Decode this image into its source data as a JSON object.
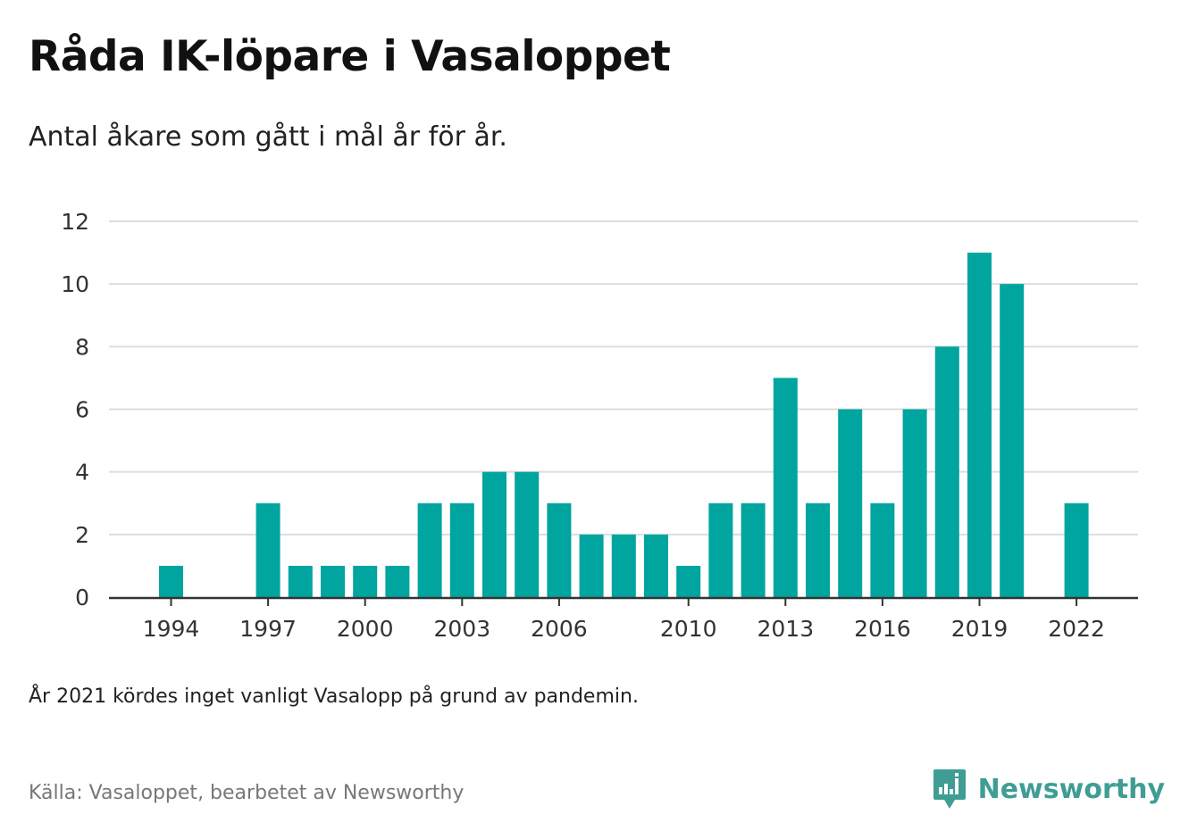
{
  "title": "Råda IK-löpare i Vasaloppet",
  "subtitle": "Antal åkare som gått i mål år för år.",
  "note": "År 2021 kördes inget vanligt Vasalopp på grund av pandemin.",
  "source": "Källa: Vasaloppet, bearbetet av Newsworthy",
  "brand": {
    "name": "Newsworthy",
    "icon": "newsworthy-logo-icon",
    "color": "#3f9d94"
  },
  "colors": {
    "bar": "#00a59f",
    "grid": "#dddddd",
    "axis": "#333333",
    "tick_text": "#333333"
  },
  "chart_data": {
    "type": "bar",
    "x": [
      1994,
      1995,
      1996,
      1997,
      1998,
      1999,
      2000,
      2001,
      2002,
      2003,
      2004,
      2005,
      2006,
      2007,
      2008,
      2009,
      2010,
      2011,
      2012,
      2013,
      2014,
      2015,
      2016,
      2017,
      2018,
      2019,
      2020,
      2021,
      2022
    ],
    "values": [
      1,
      0,
      0,
      3,
      1,
      1,
      1,
      1,
      3,
      3,
      4,
      4,
      3,
      2,
      2,
      2,
      1,
      3,
      3,
      7,
      3,
      6,
      3,
      6,
      8,
      11,
      10,
      null,
      3
    ],
    "x_tick_labels": [
      "1994",
      "1997",
      "2000",
      "2003",
      "2006",
      "2010",
      "2013",
      "2016",
      "2019",
      "2022"
    ],
    "y_ticks": [
      "0",
      "2",
      "4",
      "6",
      "8",
      "10",
      "12"
    ],
    "ylim": [
      0,
      12
    ],
    "grid": true,
    "legend": "none"
  }
}
